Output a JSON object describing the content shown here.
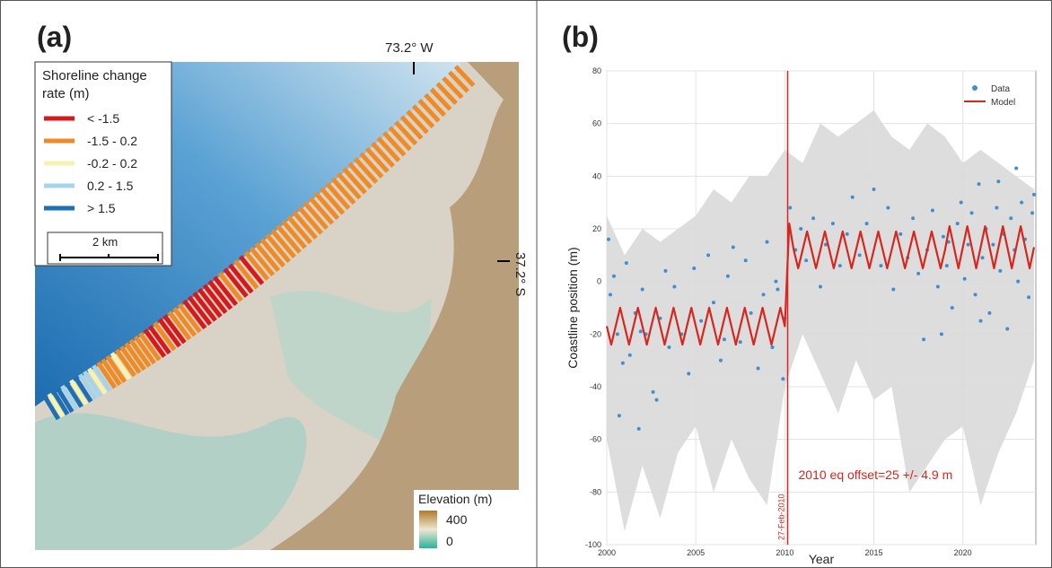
{
  "map": {
    "panel_label": "(a)",
    "legend_title": "Shoreline change rate (m)",
    "legend": [
      {
        "label": "< -1.5",
        "color": "#d7191c"
      },
      {
        "label": "-1.5 - 0.2",
        "color": "#f08a24"
      },
      {
        "label": "-0.2 - 0.2",
        "color": "#f6f2b0"
      },
      {
        "label": "0.2 - 1.5",
        "color": "#a6d4ea"
      },
      {
        "label": "> 1.5",
        "color": "#1f6fb4"
      }
    ],
    "shoreline_classes": [
      4,
      2,
      4,
      4,
      3,
      4,
      2,
      4,
      3,
      3,
      2,
      3,
      1,
      1,
      1,
      2,
      1,
      1,
      1,
      1,
      1,
      1,
      0,
      0,
      1,
      0,
      0,
      1,
      1,
      1,
      0,
      0,
      0,
      0,
      0,
      0,
      0,
      1,
      0,
      0,
      1,
      0,
      1,
      1,
      1,
      1,
      1,
      1,
      1,
      1,
      1,
      1,
      1,
      1,
      1,
      1,
      1,
      1,
      1,
      1,
      1,
      1,
      1,
      1,
      1,
      1,
      1,
      1,
      1,
      1,
      1,
      1,
      1,
      1,
      1,
      1,
      1,
      1,
      1,
      1
    ],
    "scale_label": "2 km",
    "longitude_label": "73.2° W",
    "latitude_label": "37.2° S",
    "elevation_title": "Elevation (m)",
    "elevation_max": 400,
    "elevation_min": 0
  },
  "chart_data": {
    "type": "line",
    "panel_label": "(b)",
    "x_label": "Year",
    "y_label": "Coastline position (m)",
    "xlim": [
      2000,
      2024.1
    ],
    "ylim": [
      -100,
      80
    ],
    "xticks": [
      2000,
      2005,
      2010,
      2015,
      2020
    ],
    "yticks": [
      -100,
      -80,
      -60,
      -40,
      -20,
      0,
      20,
      40,
      60,
      80
    ],
    "grid": true,
    "legend": "upper right",
    "band": {
      "color": "#d9d9d9",
      "x": [
        2000,
        2001,
        2002,
        2003,
        2004,
        2005,
        2006,
        2007,
        2008,
        2009,
        2010,
        2011,
        2012,
        2013,
        2014,
        2015,
        2016,
        2017,
        2018,
        2019,
        2020,
        2021,
        2022,
        2023,
        2024
      ],
      "lower": [
        -60,
        -95,
        -70,
        -90,
        -65,
        -55,
        -80,
        -60,
        -75,
        -85,
        -40,
        -20,
        -35,
        -50,
        -30,
        -45,
        -40,
        -80,
        -70,
        -60,
        -55,
        -85,
        -65,
        -50,
        -30
      ],
      "upper": [
        25,
        10,
        20,
        15,
        20,
        25,
        35,
        30,
        40,
        40,
        50,
        45,
        60,
        55,
        60,
        65,
        55,
        50,
        60,
        55,
        45,
        50,
        45,
        40,
        35
      ]
    },
    "series": [
      {
        "name": "Data",
        "type": "scatter",
        "color": "#3f8fd0",
        "x": [
          2000.1,
          2000.2,
          2000.4,
          2000.6,
          2000.7,
          2000.9,
          2001.1,
          2001.3,
          2001.6,
          2001.8,
          2001.9,
          2002.0,
          2002.2,
          2002.6,
          2002.8,
          2003.0,
          2003.3,
          2003.5,
          2003.8,
          2004.2,
          2004.6,
          2004.9,
          2005.3,
          2005.7,
          2006.0,
          2006.4,
          2006.6,
          2006.8,
          2007.1,
          2007.5,
          2007.8,
          2008.1,
          2008.5,
          2008.8,
          2009.0,
          2009.3,
          2009.5,
          2009.6,
          2009.9,
          2010.0,
          2010.3,
          2010.6,
          2010.9,
          2011.2,
          2011.6,
          2012.0,
          2012.3,
          2012.7,
          2013.1,
          2013.5,
          2013.8,
          2014.2,
          2014.6,
          2015.0,
          2015.4,
          2015.8,
          2016.1,
          2016.5,
          2016.9,
          2017.2,
          2017.5,
          2017.8,
          2018.0,
          2018.3,
          2018.6,
          2018.8,
          2018.9,
          2019.1,
          2019.2,
          2019.4,
          2019.7,
          2019.9,
          2020.1,
          2020.3,
          2020.5,
          2020.7,
          2020.9,
          2021.0,
          2021.1,
          2021.3,
          2021.5,
          2021.7,
          2021.9,
          2022.0,
          2022.1,
          2022.3,
          2022.5,
          2022.7,
          2022.9,
          2023.0,
          2023.1,
          2023.3,
          2023.5,
          2023.7,
          2023.9,
          2024.0
        ],
        "values": [
          16,
          -5,
          2,
          -20,
          -51,
          -31,
          7,
          -28,
          -12,
          -56,
          -19,
          -3,
          -20,
          -42,
          -45,
          -14,
          4,
          -25,
          -2,
          -20,
          -35,
          5,
          -15,
          10,
          -8,
          -30,
          -22,
          2,
          13,
          -23,
          8,
          -12,
          -33,
          -5,
          15,
          -25,
          0,
          -3,
          -37,
          -14,
          28,
          12,
          20,
          8,
          24,
          -2,
          14,
          22,
          6,
          18,
          32,
          10,
          22,
          35,
          6,
          28,
          -3,
          18,
          9,
          24,
          3,
          -22,
          12,
          27,
          -2,
          -20,
          17,
          6,
          15,
          -10,
          22,
          30,
          1,
          14,
          26,
          -5,
          37,
          -15,
          9,
          20,
          -12,
          14,
          28,
          38,
          4,
          18,
          -18,
          24,
          12,
          43,
          0,
          30,
          16,
          -6,
          26,
          33
        ]
      },
      {
        "name": "Model",
        "type": "line",
        "color": "#d7261e",
        "x": [
          2000,
          2000.25,
          2000.5,
          2000.75,
          2001,
          2001.25,
          2001.5,
          2001.75,
          2002,
          2002.25,
          2002.5,
          2002.75,
          2003,
          2003.25,
          2003.5,
          2003.75,
          2004,
          2004.25,
          2004.5,
          2004.75,
          2005,
          2005.25,
          2005.5,
          2005.75,
          2006,
          2006.25,
          2006.5,
          2006.75,
          2007,
          2007.25,
          2007.5,
          2007.75,
          2008,
          2008.25,
          2008.5,
          2008.75,
          2009,
          2009.25,
          2009.5,
          2009.75,
          2010,
          2010.25,
          2010.5,
          2010.75,
          2011,
          2011.25,
          2011.5,
          2011.75,
          2012,
          2012.25,
          2012.5,
          2012.75,
          2013,
          2013.25,
          2013.5,
          2013.75,
          2014,
          2014.25,
          2014.5,
          2014.75,
          2015,
          2015.25,
          2015.5,
          2015.75,
          2016,
          2016.25,
          2016.5,
          2016.75,
          2017,
          2017.25,
          2017.5,
          2017.75,
          2018,
          2018.25,
          2018.5,
          2018.75,
          2019,
          2019.25,
          2019.5,
          2019.75,
          2020,
          2020.25,
          2020.5,
          2020.75,
          2021,
          2021.25,
          2021.5,
          2021.75,
          2022,
          2022.25,
          2022.5,
          2022.75,
          2023,
          2023.25,
          2023.5,
          2023.75,
          2024
        ],
        "values": [
          -17,
          -24,
          -17,
          -10,
          -17,
          -24,
          -17,
          -10,
          -17,
          -24,
          -17,
          -10,
          -17,
          -24,
          -17,
          -10,
          -17,
          -24,
          -17,
          -10,
          -17,
          -24,
          -17,
          -10,
          -17,
          -24,
          -17,
          -10,
          -17,
          -24,
          -17,
          -10,
          -17,
          -24,
          -17,
          -10,
          -17,
          -24,
          -17,
          -10,
          -17,
          22,
          12,
          5,
          12,
          19,
          12,
          5,
          12,
          19,
          12,
          5,
          12,
          19,
          12,
          5,
          12,
          19,
          12,
          5,
          12,
          19,
          12,
          5,
          12,
          19,
          12,
          5,
          12,
          19,
          12,
          5,
          12,
          19,
          12,
          5,
          12,
          21,
          13,
          5,
          13,
          21,
          13,
          5,
          13,
          21,
          13,
          5,
          13,
          21,
          13,
          5,
          13,
          21,
          13,
          5,
          13
        ]
      }
    ],
    "event": {
      "x": 2010.16,
      "label": "27-Feb-2010",
      "color": "#d7261e"
    },
    "annotation": "2010 eq offset=25 +/- 4.9 m"
  }
}
